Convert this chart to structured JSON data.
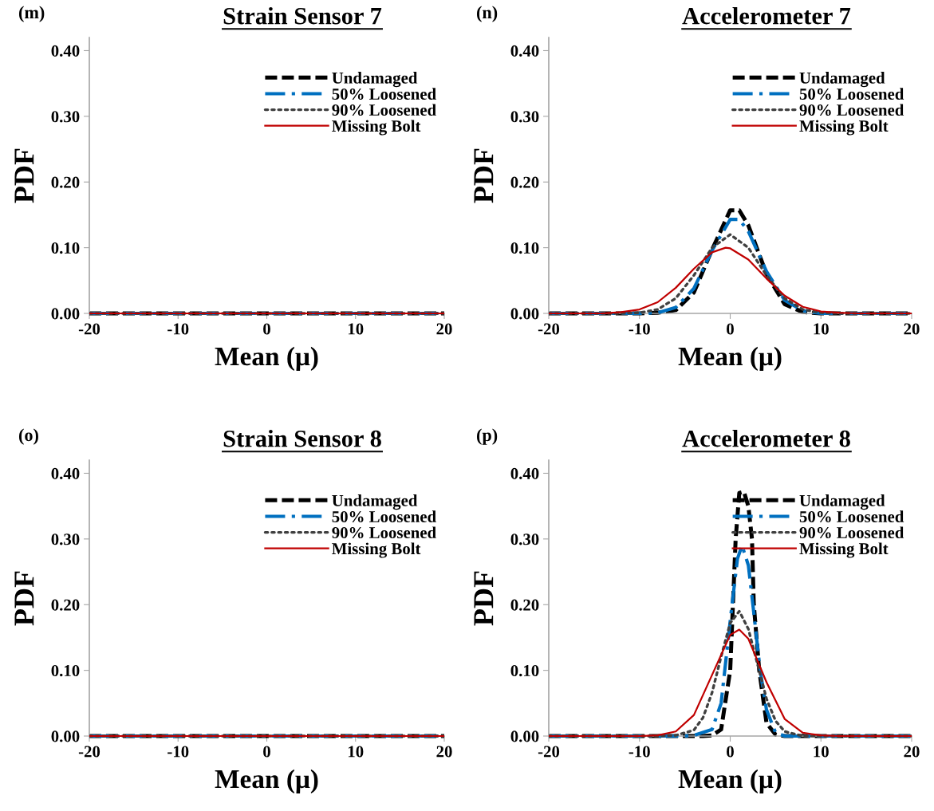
{
  "chart_data": [
    {
      "type": "line",
      "title": "Strain Sensor 7",
      "xlabel": "Mean (μ)",
      "ylabel": "PDF",
      "annotations": [
        "(m)"
      ],
      "xlim": [
        -20,
        20
      ],
      "ylim": [
        0,
        0.42
      ],
      "xticks": [
        -20,
        -10,
        0,
        10,
        20
      ],
      "yticks": [
        {
          "value": 0,
          "label": "0.00"
        },
        {
          "value": 0.1,
          "label": "0.10"
        },
        {
          "value": 0.2,
          "label": "0.20"
        },
        {
          "value": 0.3,
          "label": "0.30"
        },
        {
          "value": 0.4,
          "label": "0.40"
        }
      ],
      "legend": "top right",
      "grid": false,
      "series": [
        {
          "name": "Undamaged",
          "color": "#000000",
          "line_style": "dashed",
          "x": [
            -20,
            -10,
            0,
            10,
            20
          ],
          "values": [
            0,
            0,
            0,
            0,
            0
          ]
        },
        {
          "name": "50% Loosened",
          "color": "#0070c0",
          "line_style": "dashdot",
          "x": [
            -20,
            -10,
            0,
            10,
            20
          ],
          "values": [
            0,
            0,
            0,
            0,
            0
          ]
        },
        {
          "name": "90% Loosened",
          "color": "#404040",
          "line_style": "dotted",
          "x": [
            -20,
            -10,
            0,
            10,
            20
          ],
          "values": [
            0,
            0,
            0,
            0,
            0
          ]
        },
        {
          "name": "Missing Bolt",
          "color": "#c00000",
          "line_style": "solid",
          "x": [
            -20,
            -10,
            0,
            10,
            20
          ],
          "values": [
            0,
            0,
            0,
            0,
            0
          ]
        }
      ]
    },
    {
      "type": "line",
      "title": "Accelerometer 7",
      "xlabel": "Mean (μ)",
      "ylabel": "PDF",
      "annotations": [
        "(n)"
      ],
      "xlim": [
        -20,
        20
      ],
      "ylim": [
        0,
        0.42
      ],
      "xticks": [
        -20,
        -10,
        0,
        10,
        20
      ],
      "yticks": [
        {
          "value": 0,
          "label": "0.00"
        },
        {
          "value": 0.1,
          "label": "0.10"
        },
        {
          "value": 0.2,
          "label": "0.20"
        },
        {
          "value": 0.3,
          "label": "0.30"
        },
        {
          "value": 0.4,
          "label": "0.40"
        }
      ],
      "legend": "top right",
      "grid": false,
      "series": [
        {
          "name": "Undamaged",
          "color": "#000000",
          "line_style": "dashed",
          "x": [
            -20,
            -10,
            -8,
            -6,
            -4,
            -2,
            0,
            1,
            2,
            4,
            6,
            8,
            10,
            20
          ],
          "values": [
            0,
            0,
            0.001,
            0.005,
            0.032,
            0.097,
            0.157,
            0.157,
            0.134,
            0.06,
            0.014,
            0.002,
            0,
            0
          ]
        },
        {
          "name": "50% Loosened",
          "color": "#0070c0",
          "line_style": "dashdot",
          "x": [
            -20,
            -10,
            -8,
            -6,
            -4,
            -2,
            0,
            1,
            2,
            4,
            6,
            8,
            10,
            20
          ],
          "values": [
            0,
            0,
            0.001,
            0.009,
            0.038,
            0.096,
            0.143,
            0.143,
            0.125,
            0.064,
            0.02,
            0.004,
            0,
            0
          ]
        },
        {
          "name": "90% Loosened",
          "color": "#404040",
          "line_style": "dotted",
          "x": [
            -20,
            -12,
            -10,
            -8,
            -6,
            -4,
            -2,
            0,
            2,
            4,
            6,
            8,
            10,
            12,
            20
          ],
          "values": [
            0,
            0,
            0.001,
            0.006,
            0.023,
            0.058,
            0.1,
            0.12,
            0.1,
            0.058,
            0.023,
            0.006,
            0.001,
            0,
            0
          ]
        },
        {
          "name": "Missing Bolt",
          "color": "#c00000",
          "line_style": "solid",
          "x": [
            -20,
            -14,
            -12,
            -10,
            -8,
            -6,
            -4,
            -2,
            -0.5,
            0,
            2,
            4,
            6,
            8,
            10,
            12,
            14,
            20
          ],
          "values": [
            0,
            0,
            0.002,
            0.006,
            0.017,
            0.039,
            0.068,
            0.093,
            0.1,
            0.099,
            0.082,
            0.053,
            0.027,
            0.01,
            0.003,
            0.001,
            0,
            0
          ]
        }
      ]
    },
    {
      "type": "line",
      "title": "Strain Sensor 8",
      "xlabel": "Mean (μ)",
      "ylabel": "PDF",
      "annotations": [
        "(o)"
      ],
      "xlim": [
        -20,
        20
      ],
      "ylim": [
        0,
        0.42
      ],
      "xticks": [
        -20,
        -10,
        0,
        10,
        20
      ],
      "yticks": [
        {
          "value": 0,
          "label": "0.00"
        },
        {
          "value": 0.1,
          "label": "0.10"
        },
        {
          "value": 0.2,
          "label": "0.20"
        },
        {
          "value": 0.3,
          "label": "0.30"
        },
        {
          "value": 0.4,
          "label": "0.40"
        }
      ],
      "legend": "top right",
      "grid": false,
      "series": [
        {
          "name": "Undamaged",
          "color": "#000000",
          "line_style": "dashed",
          "x": [
            -20,
            -10,
            0,
            10,
            20
          ],
          "values": [
            0,
            0,
            0,
            0,
            0
          ]
        },
        {
          "name": "50% Loosened",
          "color": "#0070c0",
          "line_style": "dashdot",
          "x": [
            -20,
            -10,
            0,
            10,
            20
          ],
          "values": [
            0,
            0,
            0,
            0,
            0
          ]
        },
        {
          "name": "90% Loosened",
          "color": "#404040",
          "line_style": "dotted",
          "x": [
            -20,
            -10,
            0,
            10,
            20
          ],
          "values": [
            0,
            0,
            0,
            0,
            0
          ]
        },
        {
          "name": "Missing Bolt",
          "color": "#c00000",
          "line_style": "solid",
          "x": [
            -20,
            -10,
            0,
            10,
            20
          ],
          "values": [
            0,
            0,
            0,
            0,
            0
          ]
        }
      ]
    },
    {
      "type": "line",
      "title": "Accelerometer 8",
      "xlabel": "Mean (μ)",
      "ylabel": "PDF",
      "annotations": [
        "(p)"
      ],
      "xlim": [
        -20,
        20
      ],
      "ylim": [
        0,
        0.42
      ],
      "xticks": [
        -20,
        -10,
        0,
        10,
        20
      ],
      "yticks": [
        {
          "value": 0,
          "label": "0.00"
        },
        {
          "value": 0.1,
          "label": "0.10"
        },
        {
          "value": 0.2,
          "label": "0.20"
        },
        {
          "value": 0.3,
          "label": "0.30"
        },
        {
          "value": 0.4,
          "label": "0.40"
        }
      ],
      "legend": "top right",
      "grid": false,
      "series": [
        {
          "name": "Undamaged",
          "color": "#000000",
          "line_style": "dashed",
          "x": [
            -20,
            -3,
            -2,
            -1,
            0,
            0.3,
            0.6,
            1,
            1.5,
            2,
            2.4,
            2.6,
            3.2,
            4,
            5,
            6,
            20
          ],
          "values": [
            0,
            0,
            0.001,
            0.01,
            0.1,
            0.2,
            0.3,
            0.37,
            0.372,
            0.35,
            0.3,
            0.2,
            0.1,
            0.02,
            0.002,
            0,
            0
          ]
        },
        {
          "name": "50% Loosened",
          "color": "#0070c0",
          "line_style": "dashdot",
          "x": [
            -20,
            -5,
            -4,
            -2,
            -1,
            -0.6,
            0.2,
            0.8,
            1.3,
            2,
            2.5,
            3.3,
            4,
            5,
            6,
            20
          ],
          "values": [
            0,
            0,
            0.001,
            0.01,
            0.05,
            0.1,
            0.2,
            0.27,
            0.29,
            0.26,
            0.2,
            0.1,
            0.04,
            0.005,
            0,
            0
          ]
        },
        {
          "name": "90% Loosened",
          "color": "#404040",
          "line_style": "dotted",
          "x": [
            -20,
            -8,
            -6,
            -4,
            -3,
            -2,
            -1,
            0,
            1,
            2,
            3,
            4,
            5,
            6,
            8,
            20
          ],
          "values": [
            0,
            0,
            0.001,
            0.009,
            0.028,
            0.066,
            0.121,
            0.172,
            0.19,
            0.163,
            0.11,
            0.057,
            0.023,
            0.007,
            0,
            0
          ]
        },
        {
          "name": "Missing Bolt",
          "color": "#c00000",
          "line_style": "solid",
          "x": [
            -20,
            -10,
            -8,
            -6,
            -4,
            -2,
            0,
            1,
            2,
            4,
            6,
            8,
            10,
            12,
            20
          ],
          "values": [
            0,
            0,
            0.001,
            0.007,
            0.032,
            0.093,
            0.154,
            0.162,
            0.148,
            0.082,
            0.026,
            0.005,
            0.001,
            0,
            0
          ]
        }
      ]
    }
  ]
}
